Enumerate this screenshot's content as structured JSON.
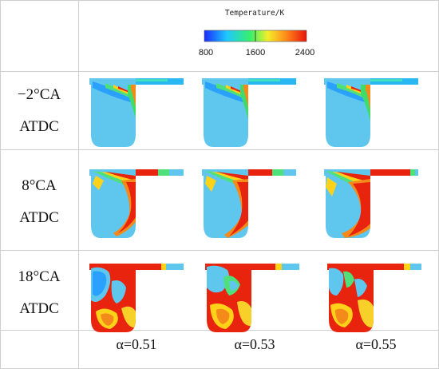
{
  "colorbar": {
    "title": "Temperature/K",
    "ticks": [
      "800",
      "1600",
      "2400"
    ],
    "colors": [
      "#1a2bff",
      "#1fc8ff",
      "#37f06a",
      "#f2ef2a",
      "#ff8a1a",
      "#e8140c"
    ]
  },
  "rows": [
    {
      "crank_line1": "−2°CA",
      "crank_line2": "ATDC"
    },
    {
      "crank_line1": "8°CA",
      "crank_line2": "ATDC"
    },
    {
      "crank_line1": "18°CA",
      "crank_line2": "ATDC"
    }
  ],
  "columns": [
    {
      "alpha": "α=0.51"
    },
    {
      "alpha": "α=0.53"
    },
    {
      "alpha": "α=0.55"
    }
  ]
}
